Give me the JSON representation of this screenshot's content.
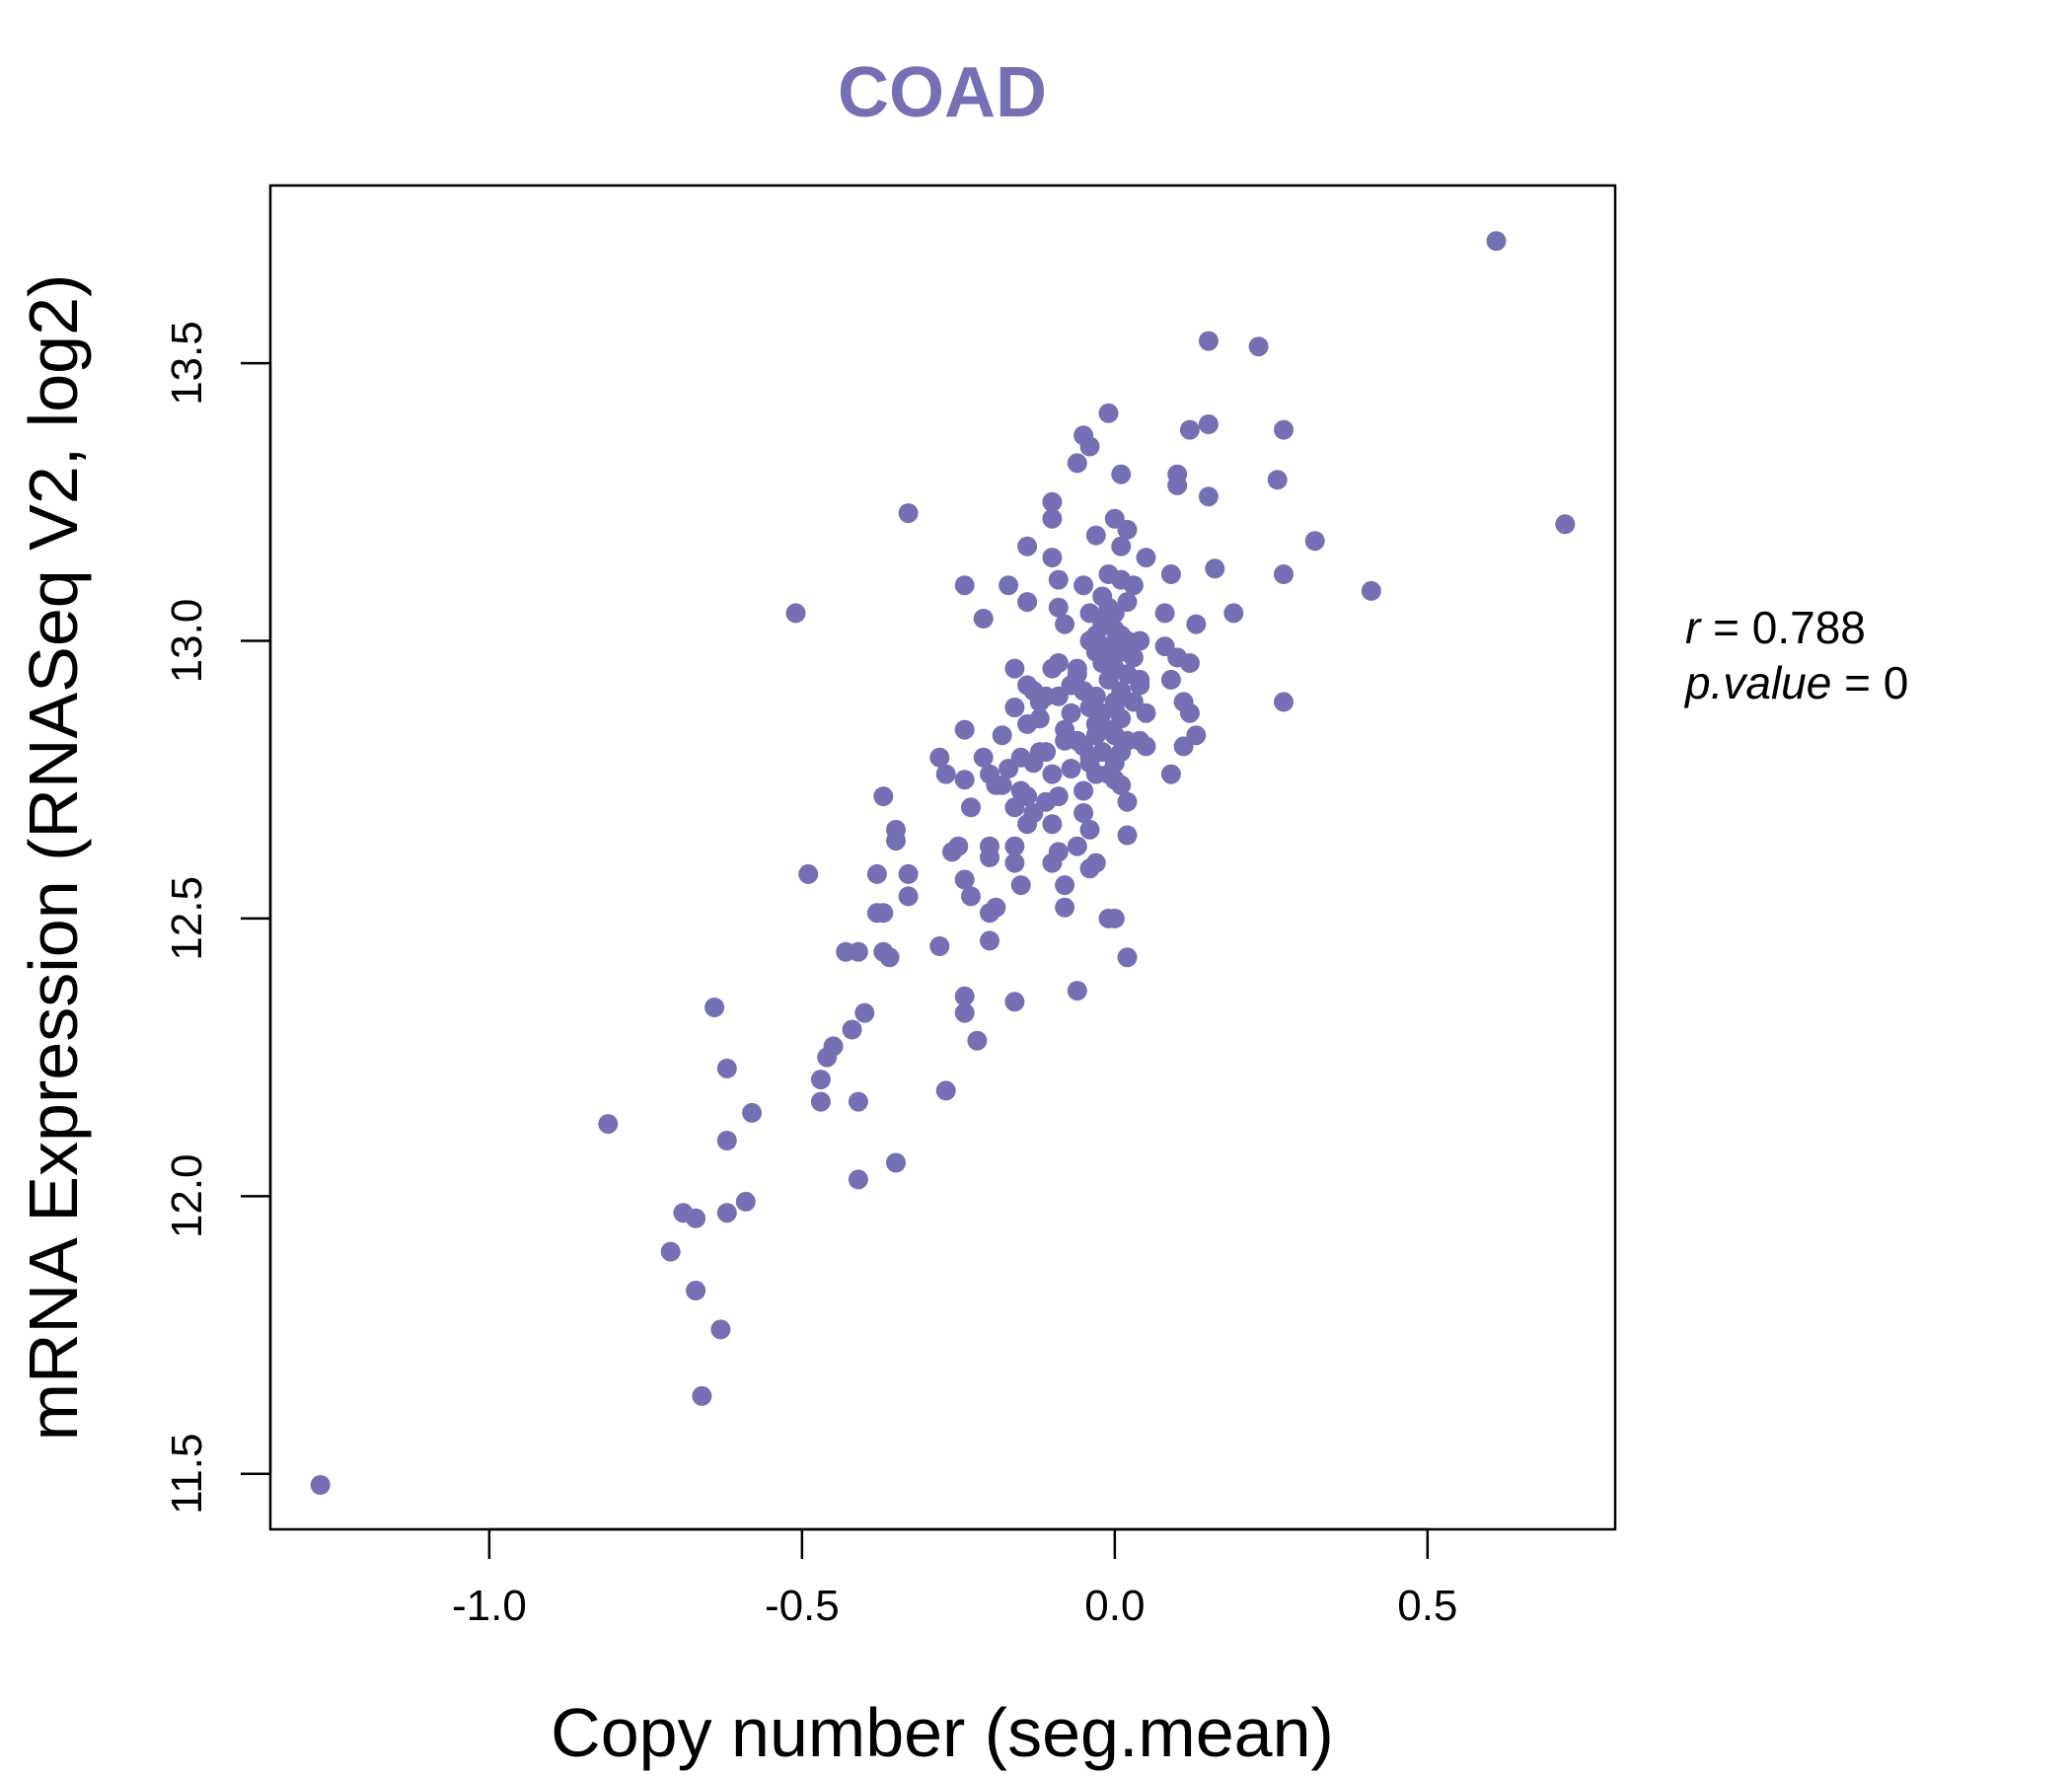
{
  "chart_data": {
    "type": "scatter",
    "title": "COAD",
    "xlabel": "Copy number (seg.mean)",
    "ylabel": "mRNA Expression (RNASeq V2, log2)",
    "xlim": [
      -1.35,
      0.8
    ],
    "ylim": [
      11.4,
      13.82
    ],
    "xticks": [
      -1.0,
      -0.5,
      0.0,
      0.5
    ],
    "xtick_labels": [
      "-1.0",
      "-0.5",
      "0.0",
      "0.5"
    ],
    "yticks": [
      11.5,
      12.0,
      12.5,
      13.0,
      13.5
    ],
    "ytick_labels": [
      "11.5",
      "12.0",
      "12.5",
      "13.0",
      "13.5"
    ],
    "color": "#7570b3",
    "annotation": {
      "r_label": "r",
      "r_value": "0.788",
      "p_label": "p.value",
      "p_value": "0"
    },
    "points": [
      [
        -1.27,
        11.48
      ],
      [
        0.61,
        13.72
      ],
      [
        0.72,
        13.21
      ],
      [
        0.15,
        13.54
      ],
      [
        0.23,
        13.53
      ],
      [
        0.27,
        13.38
      ],
      [
        0.15,
        13.39
      ],
      [
        0.12,
        13.38
      ],
      [
        -0.01,
        13.41
      ],
      [
        -0.05,
        13.37
      ],
      [
        -0.04,
        13.35
      ],
      [
        -0.06,
        13.32
      ],
      [
        0.01,
        13.3
      ],
      [
        0.1,
        13.3
      ],
      [
        0.1,
        13.28
      ],
      [
        0.26,
        13.29
      ],
      [
        0.15,
        13.26
      ],
      [
        -0.1,
        13.25
      ],
      [
        -0.1,
        13.22
      ],
      [
        -0.33,
        13.23
      ],
      [
        0.0,
        13.22
      ],
      [
        0.02,
        13.2
      ],
      [
        -0.03,
        13.19
      ],
      [
        0.32,
        13.18
      ],
      [
        -0.14,
        13.17
      ],
      [
        0.01,
        13.17
      ],
      [
        0.05,
        13.15
      ],
      [
        -0.1,
        13.15
      ],
      [
        0.16,
        13.13
      ],
      [
        0.09,
        13.12
      ],
      [
        -0.09,
        13.11
      ],
      [
        0.27,
        13.12
      ],
      [
        0.03,
        13.1
      ],
      [
        -0.24,
        13.1
      ],
      [
        -0.17,
        13.1
      ],
      [
        0.41,
        13.09
      ],
      [
        -0.05,
        13.1
      ],
      [
        -0.14,
        13.07
      ],
      [
        -0.09,
        13.06
      ],
      [
        0.19,
        13.05
      ],
      [
        0.08,
        13.05
      ],
      [
        -0.51,
        13.05
      ],
      [
        -0.21,
        13.04
      ],
      [
        0.13,
        13.03
      ],
      [
        -0.08,
        13.03
      ],
      [
        -0.02,
        13.04
      ],
      [
        0.0,
        13.02
      ],
      [
        0.04,
        13.0
      ],
      [
        -0.04,
        13.0
      ],
      [
        -0.03,
        12.98
      ],
      [
        0.08,
        12.99
      ],
      [
        0.1,
        12.97
      ],
      [
        -0.01,
        12.97
      ],
      [
        0.12,
        12.96
      ],
      [
        -0.09,
        12.96
      ],
      [
        -0.16,
        12.95
      ],
      [
        -0.1,
        12.95
      ],
      [
        -0.06,
        12.94
      ],
      [
        0.09,
        12.93
      ],
      [
        0.04,
        12.92
      ],
      [
        -0.14,
        12.92
      ],
      [
        -0.05,
        12.91
      ],
      [
        -0.09,
        12.9
      ],
      [
        -0.12,
        12.89
      ],
      [
        0.11,
        12.89
      ],
      [
        0.27,
        12.89
      ],
      [
        -0.16,
        12.88
      ],
      [
        0.0,
        12.88
      ],
      [
        -0.07,
        12.87
      ],
      [
        0.05,
        12.87
      ],
      [
        0.12,
        12.87
      ],
      [
        -0.14,
        12.85
      ],
      [
        -0.03,
        12.85
      ],
      [
        0.13,
        12.83
      ],
      [
        -0.24,
        12.84
      ],
      [
        -0.18,
        12.83
      ],
      [
        0.04,
        12.82
      ],
      [
        -0.08,
        12.82
      ],
      [
        0.02,
        12.82
      ],
      [
        -0.05,
        12.81
      ],
      [
        0.05,
        12.81
      ],
      [
        0.11,
        12.81
      ],
      [
        -0.12,
        12.8
      ],
      [
        -0.28,
        12.79
      ],
      [
        -0.21,
        12.79
      ],
      [
        -0.15,
        12.79
      ],
      [
        -0.04,
        12.78
      ],
      [
        0.0,
        12.78
      ],
      [
        -0.27,
        12.76
      ],
      [
        -0.2,
        12.76
      ],
      [
        -0.1,
        12.76
      ],
      [
        -0.03,
        12.76
      ],
      [
        0.09,
        12.76
      ],
      [
        0.0,
        12.75
      ],
      [
        -0.24,
        12.75
      ],
      [
        -0.18,
        12.74
      ],
      [
        -0.37,
        12.72
      ],
      [
        -0.14,
        12.72
      ],
      [
        -0.09,
        12.72
      ],
      [
        -0.16,
        12.7
      ],
      [
        0.02,
        12.71
      ],
      [
        -0.23,
        12.7
      ],
      [
        -0.13,
        12.69
      ],
      [
        -0.05,
        12.69
      ],
      [
        -0.14,
        12.67
      ],
      [
        -0.1,
        12.67
      ],
      [
        -0.35,
        12.66
      ],
      [
        -0.04,
        12.66
      ],
      [
        0.02,
        12.65
      ],
      [
        -0.35,
        12.64
      ],
      [
        -0.25,
        12.63
      ],
      [
        -0.2,
        12.63
      ],
      [
        -0.16,
        12.63
      ],
      [
        -0.06,
        12.63
      ],
      [
        -0.26,
        12.62
      ],
      [
        -0.09,
        12.62
      ],
      [
        -0.2,
        12.61
      ],
      [
        -0.16,
        12.6
      ],
      [
        -0.1,
        12.6
      ],
      [
        -0.03,
        12.6
      ],
      [
        -0.49,
        12.58
      ],
      [
        -0.38,
        12.58
      ],
      [
        -0.33,
        12.58
      ],
      [
        -0.04,
        12.59
      ],
      [
        -0.24,
        12.57
      ],
      [
        -0.15,
        12.56
      ],
      [
        -0.08,
        12.56
      ],
      [
        -0.23,
        12.54
      ],
      [
        -0.33,
        12.54
      ],
      [
        -0.19,
        12.52
      ],
      [
        -0.08,
        12.52
      ],
      [
        -0.38,
        12.51
      ],
      [
        -0.37,
        12.51
      ],
      [
        -0.2,
        12.51
      ],
      [
        -0.01,
        12.5
      ],
      [
        0.0,
        12.5
      ],
      [
        -0.28,
        12.45
      ],
      [
        -0.2,
        12.46
      ],
      [
        -0.43,
        12.44
      ],
      [
        -0.41,
        12.44
      ],
      [
        -0.37,
        12.44
      ],
      [
        -0.36,
        12.43
      ],
      [
        0.02,
        12.43
      ],
      [
        -0.06,
        12.37
      ],
      [
        -0.24,
        12.36
      ],
      [
        -0.16,
        12.35
      ],
      [
        -0.64,
        12.34
      ],
      [
        -0.4,
        12.33
      ],
      [
        -0.24,
        12.33
      ],
      [
        -0.42,
        12.3
      ],
      [
        -0.22,
        12.28
      ],
      [
        -0.45,
        12.27
      ],
      [
        -0.46,
        12.25
      ],
      [
        -0.62,
        12.23
      ],
      [
        -0.47,
        12.21
      ],
      [
        -0.27,
        12.19
      ],
      [
        -0.47,
        12.17
      ],
      [
        -0.41,
        12.17
      ],
      [
        -0.58,
        12.15
      ],
      [
        -0.81,
        12.13
      ],
      [
        -0.62,
        12.1
      ],
      [
        -0.35,
        12.06
      ],
      [
        -0.41,
        12.03
      ],
      [
        -0.59,
        11.99
      ],
      [
        -0.69,
        11.97
      ],
      [
        -0.62,
        11.97
      ],
      [
        -0.67,
        11.96
      ],
      [
        -0.71,
        11.9
      ],
      [
        -0.67,
        11.83
      ],
      [
        -0.63,
        11.76
      ],
      [
        -0.66,
        11.64
      ],
      [
        -0.02,
        13.08
      ],
      [
        -0.01,
        13.06
      ],
      [
        0.0,
        13.05
      ],
      [
        -0.02,
        13.03
      ],
      [
        0.01,
        13.01
      ],
      [
        -0.01,
        12.99
      ],
      [
        0.01,
        12.98
      ],
      [
        -0.02,
        12.96
      ],
      [
        0.0,
        12.95
      ],
      [
        -0.01,
        12.93
      ],
      [
        0.01,
        12.91
      ],
      [
        -0.03,
        12.9
      ],
      [
        0.0,
        12.89
      ],
      [
        -0.02,
        12.87
      ],
      [
        0.01,
        12.86
      ],
      [
        -0.01,
        12.84
      ],
      [
        -0.03,
        12.83
      ],
      [
        0.0,
        12.83
      ],
      [
        -0.06,
        12.82
      ],
      [
        -0.02,
        12.8
      ],
      [
        0.01,
        12.8
      ],
      [
        -0.04,
        12.79
      ],
      [
        -0.11,
        12.8
      ],
      [
        -0.13,
        12.78
      ],
      [
        -0.08,
        12.84
      ],
      [
        -0.12,
        12.86
      ],
      [
        -0.11,
        12.9
      ],
      [
        -0.13,
        12.91
      ],
      [
        -0.07,
        12.92
      ],
      [
        -0.06,
        12.95
      ],
      [
        0.02,
        12.94
      ],
      [
        0.03,
        12.97
      ],
      [
        0.02,
        13.0
      ],
      [
        -0.03,
        13.01
      ],
      [
        0.01,
        13.11
      ],
      [
        -0.01,
        13.12
      ],
      [
        0.02,
        13.07
      ],
      [
        -0.04,
        13.05
      ],
      [
        0.03,
        12.89
      ],
      [
        0.04,
        12.93
      ],
      [
        -0.04,
        12.88
      ],
      [
        -0.07,
        12.77
      ],
      [
        -0.01,
        12.76
      ],
      [
        0.01,
        12.74
      ],
      [
        -0.05,
        12.73
      ],
      [
        -0.17,
        12.77
      ],
      [
        -0.19,
        12.74
      ],
      [
        -0.15,
        12.73
      ],
      [
        -0.11,
        12.71
      ]
    ]
  }
}
